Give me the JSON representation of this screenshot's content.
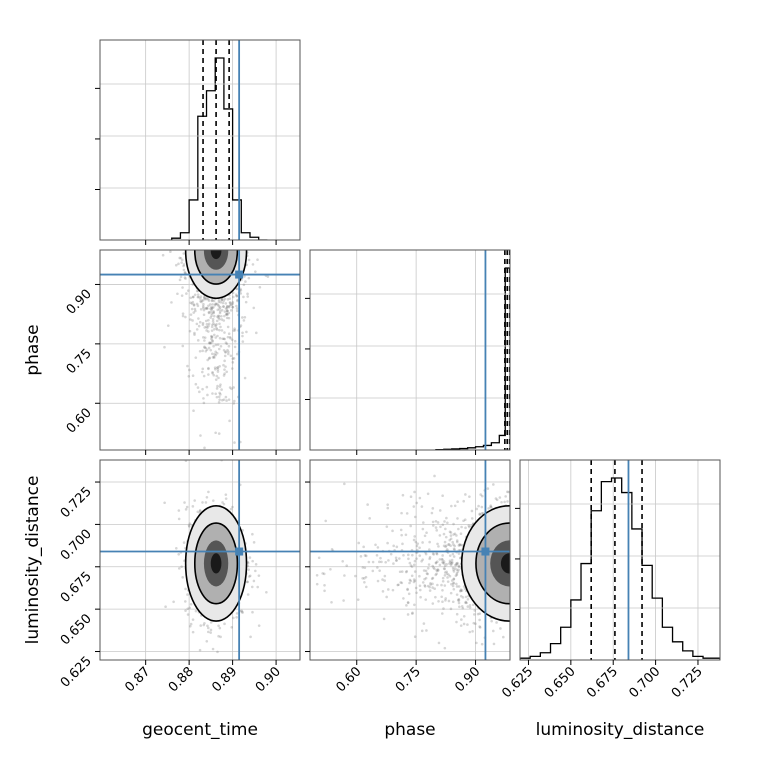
{
  "chart_data": {
    "type": "corner",
    "parameters": [
      "geocent_time",
      "phase",
      "luminosity_distance"
    ],
    "axis_labels": {
      "geocent_time": "geocent_time",
      "phase": "phase",
      "luminosity_distance": "luminosity_distance"
    },
    "ranges": {
      "geocent_time": [
        0.8595,
        0.9055
      ],
      "phase": [
        0.482,
        0.987
      ],
      "luminosity_distance": [
        0.62,
        0.738
      ]
    },
    "ticks": {
      "geocent_time": [
        0.87,
        0.88,
        0.89,
        0.9
      ],
      "phase": [
        0.6,
        0.75,
        0.9
      ],
      "luminosity_distance": [
        0.625,
        0.65,
        0.675,
        0.7,
        0.725
      ]
    },
    "tick_labels": {
      "geocent_time": [
        "0.87",
        "0.88",
        "0.89",
        "0.90"
      ],
      "phase": [
        "0.60",
        "0.75",
        "0.90"
      ],
      "luminosity_distance": [
        "0.625",
        "0.650",
        "0.675",
        "0.700",
        "0.725"
      ]
    },
    "truths": {
      "geocent_time": 0.8915,
      "phase": 0.925,
      "luminosity_distance": 0.684
    },
    "quantiles": {
      "geocent_time": [
        0.8832,
        0.8862,
        0.8892
      ],
      "phase": [
        0.974,
        0.98,
        0.986
      ],
      "luminosity_distance": [
        0.662,
        0.676,
        0.692
      ]
    },
    "histograms": {
      "geocent_time": {
        "edges": [
          0.876,
          0.878,
          0.88,
          0.882,
          0.884,
          0.886,
          0.888,
          0.89,
          0.892,
          0.894,
          0.896,
          0.898
        ],
        "counts": [
          0.01,
          0.04,
          0.22,
          0.68,
          0.82,
          1.0,
          0.72,
          0.22,
          0.04,
          0.015,
          0.0
        ]
      },
      "phase": {
        "edges": [
          0.8,
          0.82,
          0.84,
          0.86,
          0.88,
          0.9,
          0.92,
          0.94,
          0.96,
          0.975,
          0.987
        ],
        "counts": [
          0.002,
          0.004,
          0.006,
          0.008,
          0.012,
          0.018,
          0.025,
          0.04,
          0.08,
          1.0
        ]
      },
      "luminosity_distance": {
        "edges": [
          0.62,
          0.626,
          0.632,
          0.638,
          0.644,
          0.65,
          0.656,
          0.662,
          0.668,
          0.674,
          0.68,
          0.686,
          0.692,
          0.698,
          0.704,
          0.71,
          0.716,
          0.722,
          0.728,
          0.738
        ],
        "counts": [
          0.01,
          0.02,
          0.04,
          0.09,
          0.18,
          0.33,
          0.53,
          0.82,
          0.98,
          1.0,
          0.92,
          0.72,
          0.52,
          0.34,
          0.18,
          0.1,
          0.05,
          0.02,
          0.01
        ]
      }
    },
    "grid": true,
    "layout": "lower-triangle"
  }
}
